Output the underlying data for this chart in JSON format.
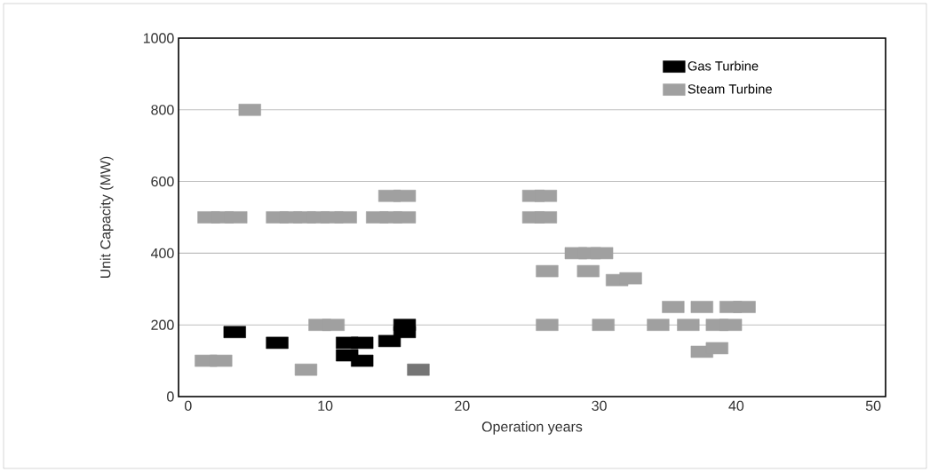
{
  "chart_data": {
    "type": "scatter",
    "xlabel": "Operation years",
    "ylabel": "Unit Capacity (MW)",
    "xlim": [
      -0.7,
      50.9
    ],
    "ylim": [
      0,
      1000
    ],
    "xticks": [
      0,
      10,
      20,
      30,
      40,
      50
    ],
    "yticks": [
      0,
      200,
      400,
      600,
      800,
      1000
    ],
    "grid": "y",
    "legend": "top right",
    "marker": "square",
    "series": [
      {
        "name": "Gas Turbine",
        "color": "#000000",
        "x": [
          3.4,
          6.5,
          11.6,
          12.7,
          11.6,
          12.7,
          14.7,
          15.8,
          15.8
        ],
        "values": [
          180,
          150,
          150,
          150,
          115,
          100,
          155,
          200,
          180
        ]
      },
      {
        "name": "Steam Turbine",
        "color": "#a0a0a0",
        "x": [
          4.5,
          1.5,
          2.5,
          3.5,
          6.5,
          7.5,
          8.5,
          9.5,
          10.5,
          11.5,
          13.8,
          14.8,
          15.8,
          14.7,
          15.8,
          9.6,
          10.6,
          1.3,
          2.4,
          8.6,
          25.2,
          26.1,
          25.2,
          26.1,
          28.3,
          29.3,
          30.2,
          26.2,
          29.2,
          31.3,
          32.3,
          26.2,
          30.3,
          35.4,
          37.5,
          39.6,
          40.6,
          34.3,
          36.5,
          38.6,
          39.6,
          37.5,
          38.6
        ],
        "values": [
          800,
          500,
          500,
          500,
          500,
          500,
          500,
          500,
          500,
          500,
          500,
          500,
          500,
          560,
          560,
          200,
          200,
          100,
          100,
          75,
          560,
          560,
          500,
          500,
          400,
          400,
          400,
          350,
          350,
          325,
          330,
          200,
          200,
          250,
          250,
          250,
          250,
          200,
          200,
          200,
          200,
          125,
          135
        ]
      },
      {
        "color": "#757575",
        "x": [
          16.8
        ],
        "values": [
          75
        ]
      }
    ]
  }
}
